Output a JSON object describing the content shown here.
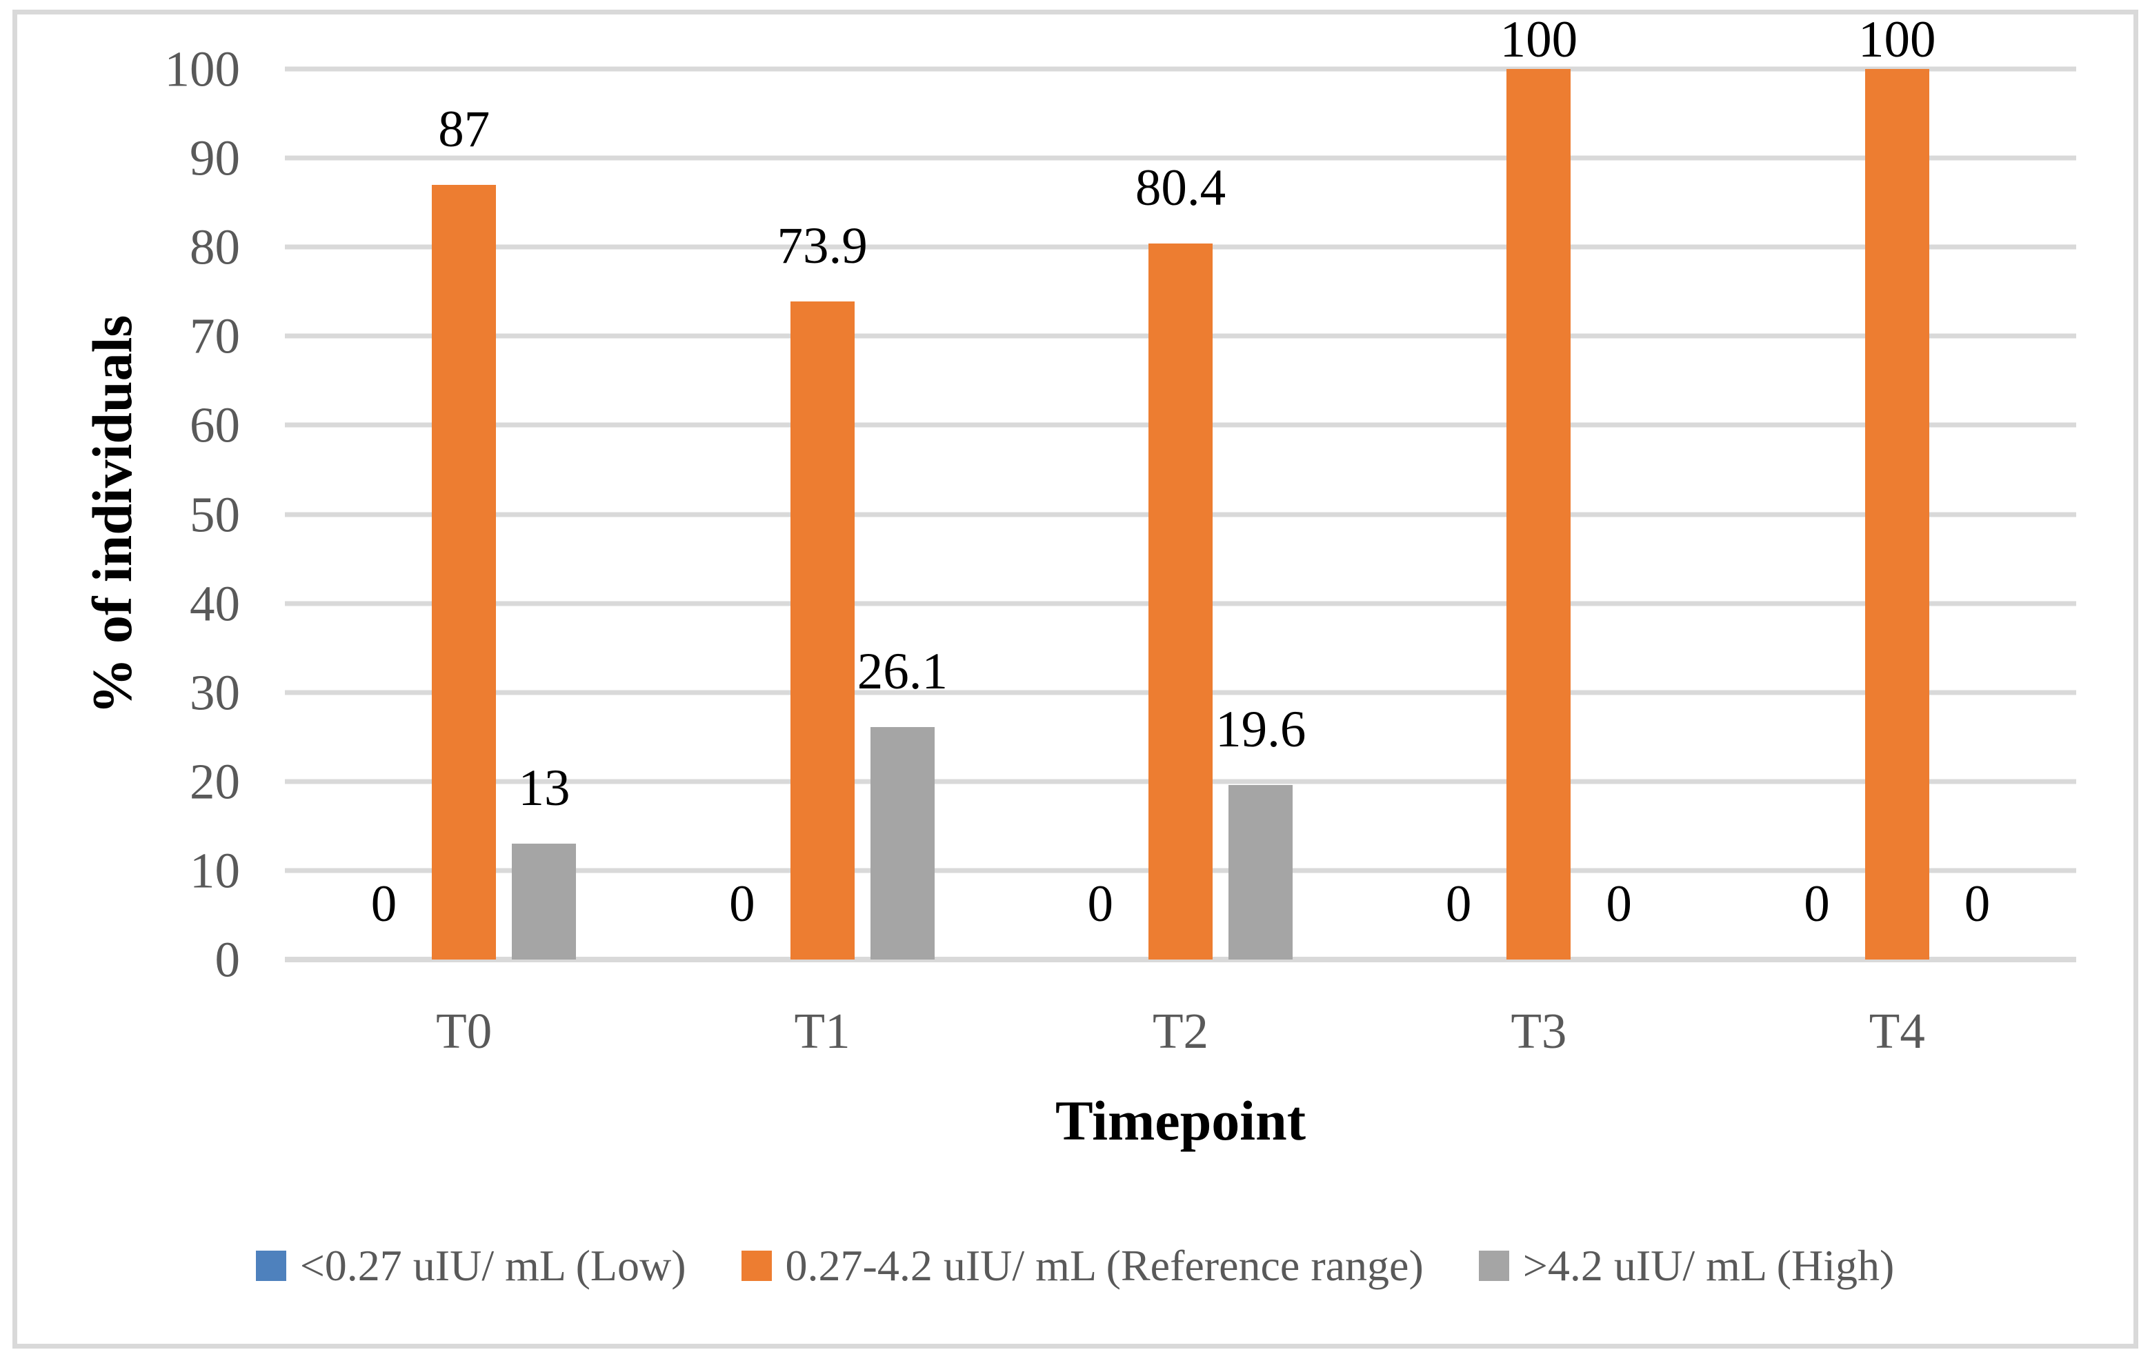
{
  "chart_data": {
    "type": "bar",
    "title": "",
    "xlabel": "Timepoint",
    "ylabel": "% of individuals",
    "categories": [
      "T0",
      "T1",
      "T2",
      "T3",
      "T4"
    ],
    "series": [
      {
        "name": "<0.27 uIU/ mL (Low)",
        "color": "#4E81BD",
        "values": [
          0,
          0,
          0,
          0,
          0
        ],
        "labels": [
          "0",
          "0",
          "0",
          "0",
          "0"
        ]
      },
      {
        "name": "0.27-4.2 uIU/ mL (Reference range)",
        "color": "#ED7D31",
        "values": [
          87,
          73.9,
          80.4,
          100,
          100
        ],
        "labels": [
          "87",
          "73.9",
          "80.4",
          "100",
          "100"
        ]
      },
      {
        "name": ">4.2 uIU/ mL (High)",
        "color": "#A5A5A5",
        "values": [
          13,
          26.1,
          19.6,
          0,
          0
        ],
        "labels": [
          "13",
          "26.1",
          "19.6",
          "0",
          "0"
        ]
      }
    ],
    "ylim": [
      0,
      100
    ],
    "ytick_step": 10,
    "yticks": [
      "0",
      "10",
      "20",
      "30",
      "40",
      "50",
      "60",
      "70",
      "80",
      "90",
      "100"
    ],
    "grid": "horizontal-only",
    "legend_position": "bottom",
    "colors": {
      "background": "#FFFFFF",
      "frame_border": "#D9D9D9",
      "gridline": "#D9D9D9",
      "axis_line": "#D9D9D9",
      "tick_text": "#595959",
      "data_label_text": "#000000",
      "axis_title_text": "#000000",
      "legend_text": "#595959"
    }
  }
}
